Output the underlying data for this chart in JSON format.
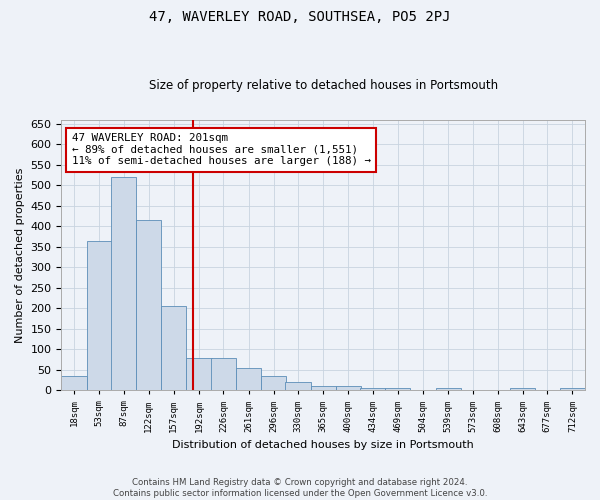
{
  "title": "47, WAVERLEY ROAD, SOUTHSEA, PO5 2PJ",
  "subtitle": "Size of property relative to detached houses in Portsmouth",
  "xlabel": "Distribution of detached houses by size in Portsmouth",
  "ylabel": "Number of detached properties",
  "footer_line1": "Contains HM Land Registry data © Crown copyright and database right 2024.",
  "footer_line2": "Contains public sector information licensed under the Open Government Licence v3.0.",
  "annotation_line1": "47 WAVERLEY ROAD: 201sqm",
  "annotation_line2": "← 89% of detached houses are smaller (1,551)",
  "annotation_line3": "11% of semi-detached houses are larger (188) →",
  "bar_color": "#cdd9e8",
  "bar_edge_color": "#5b8db8",
  "grid_color": "#c8d4e0",
  "redline_color": "#cc0000",
  "annotation_box_color": "#cc0000",
  "background_color": "#eef2f8",
  "title_color": "#000000",
  "redline_x": 201,
  "categories": [
    "18sqm",
    "53sqm",
    "87sqm",
    "122sqm",
    "157sqm",
    "192sqm",
    "226sqm",
    "261sqm",
    "296sqm",
    "330sqm",
    "365sqm",
    "400sqm",
    "434sqm",
    "469sqm",
    "504sqm",
    "539sqm",
    "573sqm",
    "608sqm",
    "643sqm",
    "677sqm",
    "712sqm"
  ],
  "bin_left_edges": [
    18,
    53,
    87,
    122,
    157,
    192,
    226,
    261,
    296,
    330,
    365,
    400,
    434,
    469,
    504,
    539,
    573,
    608,
    643,
    677,
    712
  ],
  "values": [
    35,
    365,
    520,
    415,
    205,
    80,
    80,
    55,
    35,
    20,
    10,
    10,
    5,
    5,
    0,
    5,
    0,
    0,
    5,
    0,
    5
  ],
  "ylim": [
    0,
    660
  ],
  "yticks": [
    0,
    50,
    100,
    150,
    200,
    250,
    300,
    350,
    400,
    450,
    500,
    550,
    600,
    650
  ]
}
